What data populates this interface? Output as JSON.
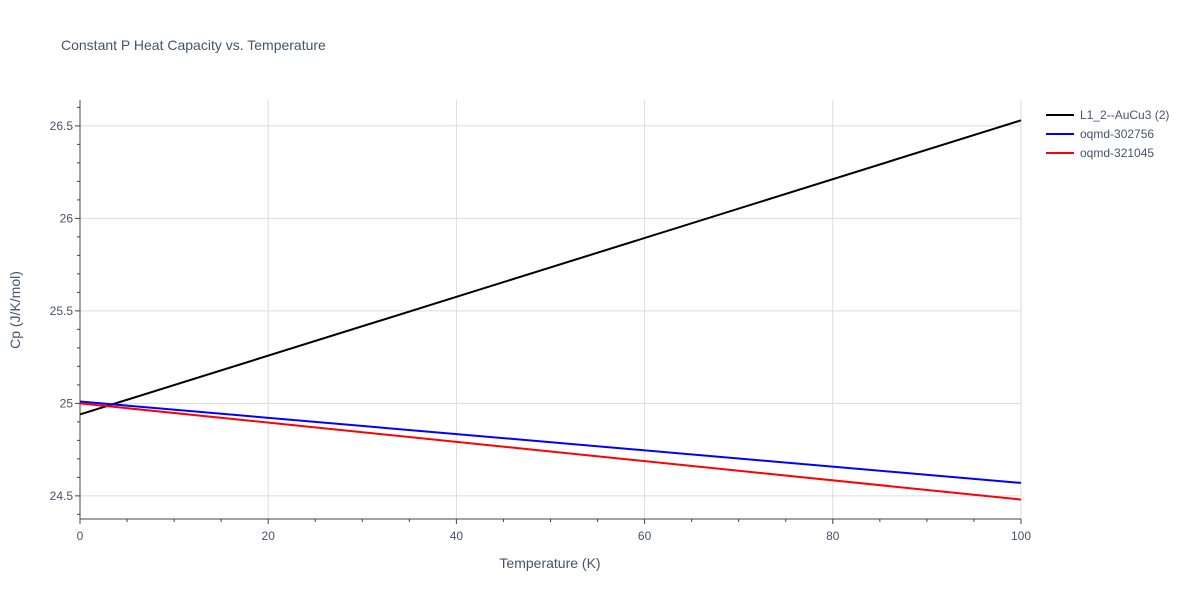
{
  "chart_data": {
    "type": "line",
    "title": "Constant P Heat Capacity vs. Temperature",
    "xlabel": "Temperature (K)",
    "ylabel": "Cp (J/K/mol)",
    "xlim": [
      0,
      100
    ],
    "ylim": [
      24.375,
      26.64
    ],
    "x_ticks": [
      0,
      20,
      40,
      60,
      80,
      100
    ],
    "x_tick_labels": [
      "0",
      "20",
      "40",
      "60",
      "80",
      "100"
    ],
    "y_ticks": [
      24.5,
      25,
      25.5,
      26,
      26.5
    ],
    "y_tick_labels": [
      "24.5",
      "25",
      "25.5",
      "26",
      "26.5"
    ],
    "grid": true,
    "legend_position": "top-right",
    "series": [
      {
        "name": "L1_2--AuCu3 (2)",
        "color": "#000000",
        "x": [
          0,
          100
        ],
        "y": [
          24.94,
          26.53
        ]
      },
      {
        "name": "oqmd-302756",
        "color": "#0000ff",
        "x": [
          0,
          100
        ],
        "y": [
          25.01,
          24.57
        ]
      },
      {
        "name": "oqmd-321045",
        "color": "#ff0000",
        "x": [
          0,
          100
        ],
        "y": [
          25.0,
          24.48
        ]
      }
    ]
  }
}
